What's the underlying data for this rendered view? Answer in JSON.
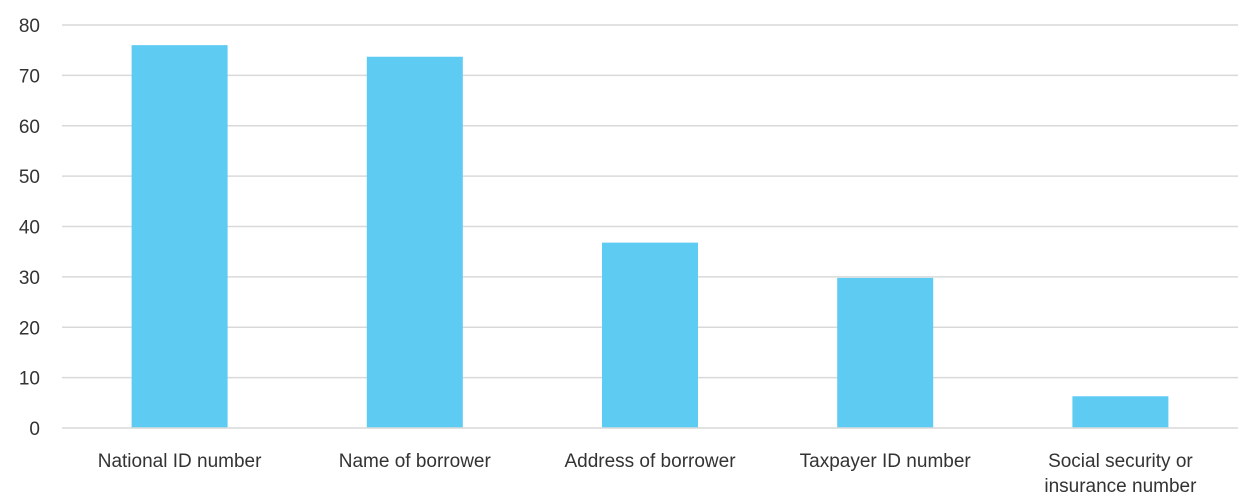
{
  "chart_data": {
    "type": "bar",
    "categories": [
      [
        "National ID number"
      ],
      [
        "Name of borrower"
      ],
      [
        "Address of borrower"
      ],
      [
        "Taxpayer ID number"
      ],
      [
        "Social security or",
        "insurance number"
      ]
    ],
    "series": [
      {
        "values": [
          76,
          73.7,
          36.8,
          29.8,
          6.3
        ],
        "color": "#5ecbf3"
      }
    ],
    "ylim": [
      0,
      80
    ],
    "yticks": [
      0,
      10,
      20,
      30,
      40,
      50,
      60,
      70,
      80
    ],
    "grid": true,
    "legend": "none",
    "title": "",
    "xlabel": "",
    "ylabel": ""
  }
}
